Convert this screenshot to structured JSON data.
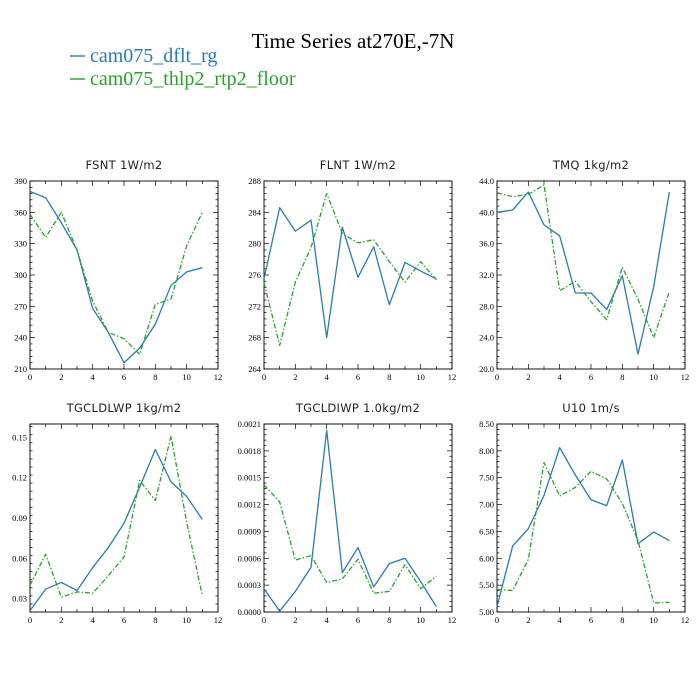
{
  "figure": {
    "title": "Time Series at270E,-7N",
    "series_styles": [
      {
        "name": "cam075_dflt_rg",
        "color": "#2a7bb0",
        "dash": ""
      },
      {
        "name": "cam075_thlp2_rtp2_floor",
        "color": "#2ca02c",
        "dash": "5,2,1.5,2"
      }
    ]
  },
  "chart_data": [
    {
      "type": "line",
      "title": "FSNT  1W/m2",
      "x": [
        0,
        1,
        2,
        3,
        4,
        5,
        6,
        7,
        8,
        9,
        10,
        11
      ],
      "xlim": [
        0,
        12
      ],
      "xticks": [
        "0",
        "2",
        "4",
        "6",
        "8",
        "10",
        "12"
      ],
      "ylim": [
        210,
        390
      ],
      "yticks": [
        "210",
        "240",
        "270",
        "300",
        "330",
        "360",
        "390"
      ],
      "series": [
        {
          "name": "cam075_dflt_rg",
          "values": [
            380,
            374,
            350,
            324,
            268,
            245,
            216,
            230,
            253,
            290,
            303,
            307
          ]
        },
        {
          "name": "cam075_thlp2_rtp2_floor",
          "values": [
            358,
            336,
            360,
            324,
            275,
            245,
            239,
            224,
            272,
            277,
            328,
            360
          ]
        }
      ]
    },
    {
      "type": "line",
      "title": "FLNT  1W/m2",
      "x": [
        0,
        1,
        2,
        3,
        4,
        5,
        6,
        7,
        8,
        9,
        10,
        11
      ],
      "xlim": [
        0,
        12
      ],
      "xticks": [
        "0",
        "2",
        "4",
        "6",
        "8",
        "10",
        "12"
      ],
      "ylim": [
        264,
        288
      ],
      "yticks": [
        "264",
        "268",
        "272",
        "276",
        "280",
        "284",
        "288"
      ],
      "series": [
        {
          "name": "cam075_dflt_rg",
          "values": [
            275.5,
            284.6,
            281.6,
            283.0,
            268.0,
            282.1,
            275.7,
            279.6,
            272.2,
            277.6,
            276.5,
            275.5
          ]
        },
        {
          "name": "cam075_thlp2_rtp2_floor",
          "values": [
            275.0,
            267.0,
            275.1,
            279.5,
            286.4,
            281.3,
            280.1,
            280.5,
            277.7,
            275.1,
            277.7,
            275.4
          ]
        }
      ]
    },
    {
      "type": "line",
      "title": "TMQ  1kg/m2",
      "x": [
        0,
        1,
        2,
        3,
        4,
        5,
        6,
        7,
        8,
        9,
        10,
        11
      ],
      "xlim": [
        0,
        12
      ],
      "xticks": [
        "0",
        "2",
        "4",
        "6",
        "8",
        "10",
        "12"
      ],
      "ylim": [
        20.0,
        44.0
      ],
      "yticks": [
        "20.0",
        "24.0",
        "28.0",
        "32.0",
        "36.0",
        "40.0",
        "44.0"
      ],
      "series": [
        {
          "name": "cam075_dflt_rg",
          "values": [
            40.0,
            40.3,
            42.6,
            38.4,
            37.0,
            29.7,
            29.7,
            27.6,
            31.9,
            21.9,
            30.5,
            42.6
          ]
        },
        {
          "name": "cam075_thlp2_rtp2_floor",
          "values": [
            42.5,
            42.0,
            42.3,
            43.5,
            30.0,
            31.2,
            28.6,
            26.3,
            33.0,
            28.9,
            24.0,
            29.9
          ]
        }
      ]
    },
    {
      "type": "line",
      "title": "TGCLDLWP  1kg/m2",
      "x": [
        0,
        1,
        2,
        3,
        4,
        5,
        6,
        7,
        8,
        9,
        10,
        11
      ],
      "xlim": [
        0,
        12
      ],
      "xticks": [
        "0",
        "2",
        "4",
        "6",
        "8",
        "10",
        "12"
      ],
      "ylim": [
        0.02,
        0.16
      ],
      "yticks": [
        "0.03",
        "0.06",
        "0.09",
        "0.12",
        "0.15"
      ],
      "series": [
        {
          "name": "cam075_dflt_rg",
          "values": [
            0.021,
            0.037,
            0.042,
            0.036,
            0.053,
            0.068,
            0.086,
            0.113,
            0.141,
            0.117,
            0.106,
            0.089
          ]
        },
        {
          "name": "cam075_thlp2_rtp2_floor",
          "values": [
            0.04,
            0.063,
            0.031,
            0.035,
            0.034,
            0.047,
            0.061,
            0.118,
            0.103,
            0.151,
            0.087,
            0.032
          ]
        }
      ]
    },
    {
      "type": "line",
      "title": "TGCLDIWP  1.0kg/m2",
      "x": [
        0,
        1,
        2,
        3,
        4,
        5,
        6,
        7,
        8,
        9,
        10,
        11
      ],
      "xlim": [
        0,
        12
      ],
      "xticks": [
        "0",
        "2",
        "4",
        "6",
        "8",
        "10",
        "12"
      ],
      "ylim": [
        0.0,
        0.0021
      ],
      "yticks": [
        "0.0000",
        "0.0003",
        "0.0006",
        "0.0009",
        "0.0012",
        "0.0015",
        "0.0018",
        "0.0021"
      ],
      "series": [
        {
          "name": "cam075_dflt_rg",
          "values": [
            0.00026,
            1e-05,
            0.00023,
            0.0005,
            0.00203,
            0.00044,
            0.00072,
            0.00028,
            0.00054,
            0.0006,
            0.00034,
            6e-05
          ]
        },
        {
          "name": "cam075_thlp2_rtp2_floor",
          "values": [
            0.00142,
            0.00123,
            0.00058,
            0.00063,
            0.00033,
            0.00037,
            0.00059,
            0.00021,
            0.00023,
            0.00053,
            0.00026,
            0.0004
          ]
        }
      ]
    },
    {
      "type": "line",
      "title": "U10  1m/s",
      "x": [
        0,
        1,
        2,
        3,
        4,
        5,
        6,
        7,
        8,
        9,
        10,
        11
      ],
      "xlim": [
        0,
        12
      ],
      "xticks": [
        "0",
        "2",
        "4",
        "6",
        "8",
        "10",
        "12"
      ],
      "ylim": [
        5.0,
        8.5
      ],
      "yticks": [
        "5.00",
        "5.50",
        "6.00",
        "6.50",
        "7.00",
        "7.50",
        "8.00",
        "8.50"
      ],
      "series": [
        {
          "name": "cam075_dflt_rg",
          "values": [
            5.1,
            6.23,
            6.55,
            7.17,
            8.06,
            7.55,
            7.09,
            6.98,
            7.83,
            6.27,
            6.49,
            6.33
          ]
        },
        {
          "name": "cam075_thlp2_rtp2_floor",
          "values": [
            5.42,
            5.4,
            5.98,
            7.78,
            7.16,
            7.32,
            7.62,
            7.48,
            7.02,
            6.33,
            5.17,
            5.18
          ]
        }
      ]
    }
  ]
}
